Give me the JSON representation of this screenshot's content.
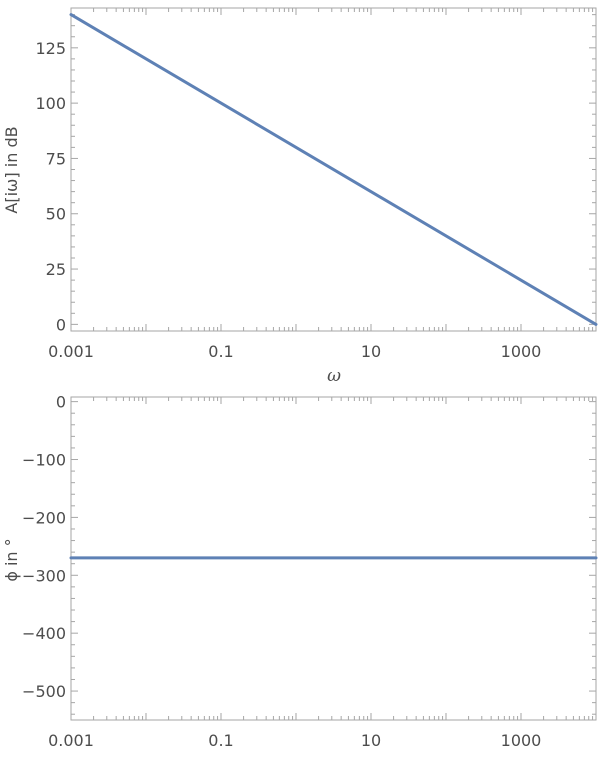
{
  "chart_data": [
    {
      "type": "line",
      "title": "",
      "xlabel": "ω",
      "ylabel": "A[iω] in dB",
      "xscale": "log",
      "xlim": [
        0.001,
        10000
      ],
      "ylim": [
        -3,
        143
      ],
      "xticks": [
        0.001,
        0.1,
        10,
        1000
      ],
      "xtick_labels": [
        "0.001",
        "0.1",
        "10",
        "1000"
      ],
      "yticks": [
        0,
        25,
        50,
        75,
        100,
        125
      ],
      "ytick_labels": [
        "0",
        "25",
        "50",
        "75",
        "100",
        "125"
      ],
      "grid": false,
      "legend": "none",
      "series": [
        {
          "x": [
            0.001,
            10000
          ],
          "y": [
            140,
            0
          ],
          "color": "#5e81b5"
        }
      ]
    },
    {
      "type": "line",
      "title": "",
      "xlabel": "",
      "ylabel": "ϕ in °",
      "xscale": "log",
      "xlim": [
        0.001,
        10000
      ],
      "ylim": [
        -550,
        8
      ],
      "xticks": [
        0.001,
        0.1,
        10,
        1000
      ],
      "xtick_labels": [
        "0.001",
        "0.1",
        "10",
        "1000"
      ],
      "yticks": [
        0,
        -100,
        -200,
        -300,
        -400,
        -500
      ],
      "ytick_labels": [
        "0",
        "−100",
        "−200",
        "−300",
        "−400",
        "−500"
      ],
      "grid": false,
      "legend": "none",
      "series": [
        {
          "x": [
            0.001,
            10000
          ],
          "y": [
            -270,
            -270
          ],
          "color": "#5e81b5"
        }
      ]
    }
  ]
}
